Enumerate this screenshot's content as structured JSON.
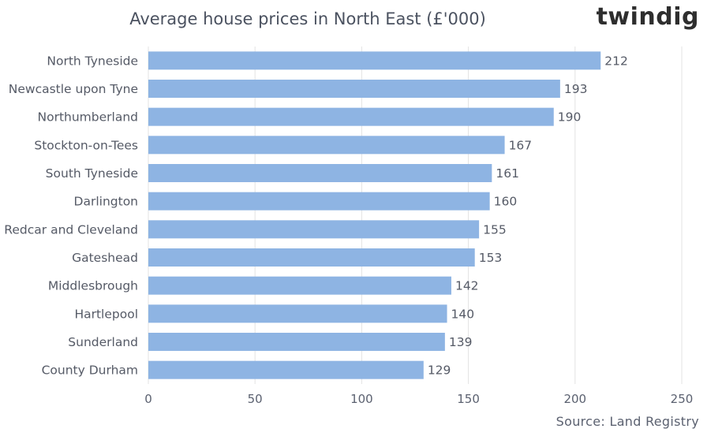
{
  "logo": "twindig",
  "source": "Source: Land Registry",
  "colors": {
    "bar": "#8eb4e3",
    "grid": "#e3e3e3"
  },
  "chart_data": {
    "type": "bar",
    "orientation": "horizontal",
    "title": "Average house prices in North East (£'000)",
    "categories": [
      "North Tyneside",
      "Newcastle upon Tyne",
      "Northumberland",
      "Stockton-on-Tees",
      "South Tyneside",
      "Darlington",
      "Redcar and Cleveland",
      "Gateshead",
      "Middlesbrough",
      "Hartlepool",
      "Sunderland",
      "County Durham"
    ],
    "values": [
      212,
      193,
      190,
      167,
      161,
      160,
      155,
      153,
      142,
      140,
      139,
      129
    ],
    "xlim": [
      0,
      250
    ],
    "xticks": [
      0,
      50,
      100,
      150,
      200,
      250
    ],
    "grid": true,
    "data_labels": true
  }
}
